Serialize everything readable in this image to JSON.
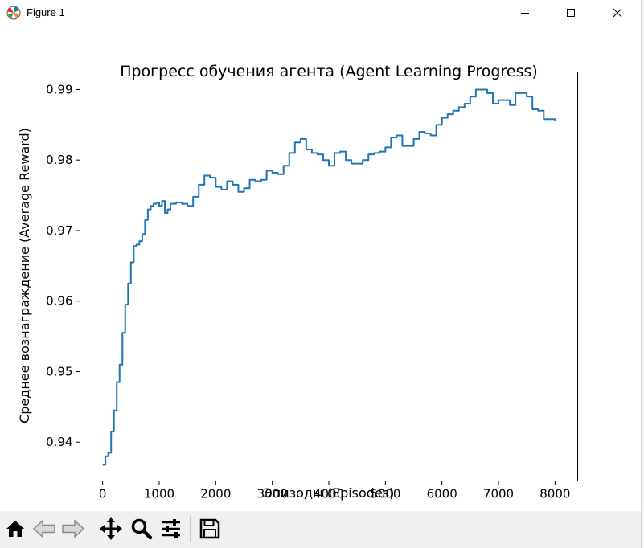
{
  "window": {
    "title": "Figure 1",
    "controls": [
      "minimize",
      "maximize",
      "close"
    ]
  },
  "chart_data": {
    "type": "line",
    "title": "Прогресс обучения агента (Agent Learning Progress)",
    "xlabel": "Эпизоды (Episodes)",
    "ylabel": "Среднее вознаграждение (Average Reward)",
    "xlim": [
      -400,
      8400
    ],
    "ylim": [
      0.9345,
      0.9925
    ],
    "x_ticks": [
      0,
      1000,
      2000,
      3000,
      4000,
      5000,
      6000,
      7000,
      8000
    ],
    "x_tick_labels": [
      "0",
      "1000",
      "2000",
      "3000",
      "4000",
      "5000",
      "6000",
      "7000",
      "8000"
    ],
    "y_ticks": [
      0.94,
      0.95,
      0.96,
      0.97,
      0.98,
      0.99
    ],
    "y_tick_labels": [
      "0.94",
      "0.95",
      "0.96",
      "0.97",
      "0.98",
      "0.99"
    ],
    "grid": false,
    "legend": "none",
    "series_color": "#1f77b4",
    "series": [
      {
        "x": [
          0,
          50,
          100,
          150,
          200,
          250,
          300,
          350,
          400,
          450,
          500,
          550,
          600,
          650,
          700,
          750,
          800,
          850,
          900,
          950,
          1000,
          1050,
          1100,
          1150,
          1200,
          1300,
          1400,
          1500,
          1600,
          1700,
          1800,
          1900,
          2000,
          2100,
          2200,
          2300,
          2400,
          2500,
          2600,
          2700,
          2800,
          2900,
          3000,
          3100,
          3200,
          3300,
          3400,
          3500,
          3600,
          3700,
          3800,
          3900,
          4000,
          4100,
          4200,
          4300,
          4400,
          4500,
          4600,
          4700,
          4800,
          4900,
          5000,
          5100,
          5200,
          5300,
          5400,
          5500,
          5600,
          5700,
          5800,
          5900,
          6000,
          6100,
          6200,
          6300,
          6400,
          6500,
          6600,
          6700,
          6800,
          6900,
          7000,
          7100,
          7200,
          7300,
          7400,
          7500,
          7600,
          7700,
          7800,
          7900,
          8000
        ],
        "y": [
          0.9368,
          0.938,
          0.9385,
          0.9415,
          0.9445,
          0.9485,
          0.951,
          0.9555,
          0.9595,
          0.9625,
          0.9655,
          0.9678,
          0.968,
          0.9685,
          0.9695,
          0.9715,
          0.973,
          0.9735,
          0.9738,
          0.974,
          0.9735,
          0.9742,
          0.9725,
          0.973,
          0.9738,
          0.974,
          0.9738,
          0.9735,
          0.9748,
          0.9765,
          0.9778,
          0.9775,
          0.9762,
          0.9758,
          0.977,
          0.9765,
          0.9755,
          0.976,
          0.9772,
          0.977,
          0.9772,
          0.9785,
          0.9782,
          0.978,
          0.9792,
          0.981,
          0.9825,
          0.983,
          0.9815,
          0.981,
          0.9808,
          0.98,
          0.9792,
          0.981,
          0.9812,
          0.98,
          0.9795,
          0.9795,
          0.98,
          0.9808,
          0.981,
          0.9812,
          0.9818,
          0.9832,
          0.9835,
          0.982,
          0.982,
          0.983,
          0.984,
          0.9838,
          0.9835,
          0.985,
          0.986,
          0.9865,
          0.987,
          0.9875,
          0.988,
          0.989,
          0.99,
          0.99,
          0.9895,
          0.988,
          0.9885,
          0.9885,
          0.9878,
          0.9895,
          0.9895,
          0.989,
          0.9872,
          0.987,
          0.9858,
          0.9858,
          0.9855
        ]
      }
    ]
  },
  "toolbar": {
    "buttons": [
      "home-icon",
      "back-icon",
      "forward-icon",
      "pan-icon",
      "zoom-icon",
      "configure-subplots-icon",
      "save-icon"
    ]
  }
}
